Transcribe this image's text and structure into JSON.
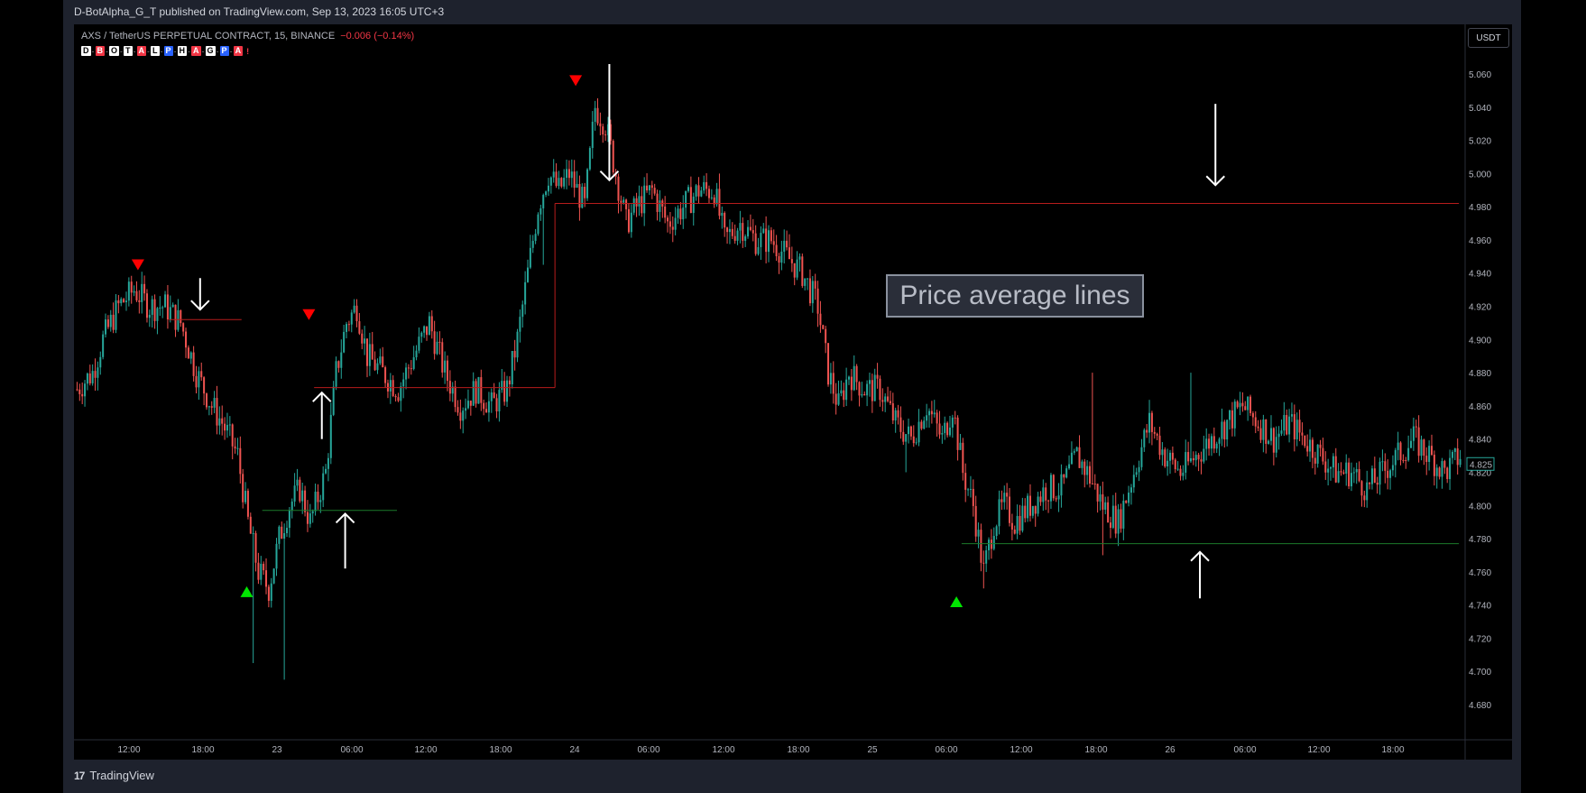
{
  "header": {
    "publisher_line": "D-BotAlpha_G_T published on TradingView.com, Sep 13, 2023 16:05 UTC+3"
  },
  "legend": {
    "symbol": "AXS / TetherUS PERPETUAL CONTRACT, 15, BINANCE",
    "change": "−0.006 (−0.14%)",
    "indicator_badges": [
      {
        "text": "D",
        "color": "#ffffff",
        "fg": "#000000"
      },
      {
        "text": "B",
        "color": "#f23645",
        "fg": "#ffffff"
      },
      {
        "text": "O",
        "color": "#ffffff",
        "fg": "#000000"
      },
      {
        "text": "T",
        "color": "#ffffff",
        "fg": "#000000"
      },
      {
        "text": "A",
        "color": "#f23645",
        "fg": "#ffffff"
      },
      {
        "text": "L",
        "color": "#ffffff",
        "fg": "#000000"
      },
      {
        "text": "P",
        "color": "#2962ff",
        "fg": "#ffffff"
      },
      {
        "text": "H",
        "color": "#ffffff",
        "fg": "#000000"
      },
      {
        "text": "A",
        "color": "#f23645",
        "fg": "#ffffff"
      },
      {
        "text": "G",
        "color": "#ffffff",
        "fg": "#000000"
      },
      {
        "text": "P",
        "color": "#2962ff",
        "fg": "#ffffff"
      },
      {
        "text": "A",
        "color": "#f23645",
        "fg": "#ffffff"
      }
    ],
    "exclaim": "!"
  },
  "currency_button": "USDT",
  "annotation_text": "Price average lines",
  "footer": {
    "brand": "TradingView",
    "mark": "17"
  },
  "colors": {
    "up": "#26a69a",
    "down": "#ef5350",
    "red_line": "#b71c1c",
    "green_line": "#1b7a2a",
    "arrow": "#ffffff",
    "marker_red": "#ff0000",
    "marker_green": "#00e600"
  },
  "chart_data": {
    "type": "candlestick",
    "timeframe": "15",
    "ylim": [
      4.665,
      5.07
    ],
    "y_ticks": [
      "4.680",
      "4.700",
      "4.720",
      "4.740",
      "4.760",
      "4.780",
      "4.800",
      "4.820",
      "4.840",
      "4.860",
      "4.880",
      "4.900",
      "4.920",
      "4.940",
      "4.960",
      "4.980",
      "5.000",
      "5.020",
      "5.040",
      "5.060"
    ],
    "x_ticks": [
      "12:00",
      "18:00",
      "23",
      "06:00",
      "12:00",
      "18:00",
      "24",
      "06:00",
      "12:00",
      "18:00",
      "25",
      "06:00",
      "12:00",
      "18:00",
      "26",
      "06:00",
      "12:00",
      "18:00"
    ],
    "x_range_bars": [
      0,
      370
    ],
    "last_price": "4.825",
    "price_path": [
      [
        0,
        4.87
      ],
      [
        6,
        4.88
      ],
      [
        10,
        4.9
      ],
      [
        16,
        4.92
      ],
      [
        22,
        4.93
      ],
      [
        28,
        4.92
      ],
      [
        34,
        4.92
      ],
      [
        40,
        4.91
      ],
      [
        46,
        4.88
      ],
      [
        52,
        4.86
      ],
      [
        56,
        4.85
      ],
      [
        62,
        4.83
      ],
      [
        66,
        4.79
      ],
      [
        70,
        4.76
      ],
      [
        74,
        4.75
      ],
      [
        78,
        4.78
      ],
      [
        82,
        4.8
      ],
      [
        86,
        4.81
      ],
      [
        90,
        4.79
      ],
      [
        96,
        4.82
      ],
      [
        100,
        4.88
      ],
      [
        104,
        4.91
      ],
      [
        108,
        4.92
      ],
      [
        112,
        4.89
      ],
      [
        118,
        4.88
      ],
      [
        124,
        4.87
      ],
      [
        130,
        4.89
      ],
      [
        136,
        4.91
      ],
      [
        142,
        4.88
      ],
      [
        148,
        4.86
      ],
      [
        154,
        4.87
      ],
      [
        160,
        4.86
      ],
      [
        166,
        4.87
      ],
      [
        170,
        4.9
      ],
      [
        174,
        4.94
      ],
      [
        178,
        4.98
      ],
      [
        182,
        5.0
      ],
      [
        186,
        4.99
      ],
      [
        190,
        5.0
      ],
      [
        196,
        4.98
      ],
      [
        200,
        5.04
      ],
      [
        204,
        5.03
      ],
      [
        208,
        5.0
      ],
      [
        212,
        4.97
      ],
      [
        216,
        4.98
      ],
      [
        222,
        4.99
      ],
      [
        228,
        4.97
      ],
      [
        234,
        4.98
      ],
      [
        240,
        4.99
      ],
      [
        246,
        4.99
      ],
      [
        250,
        4.96
      ],
      [
        256,
        4.97
      ],
      [
        262,
        4.96
      ],
      [
        268,
        4.96
      ],
      [
        274,
        4.95
      ],
      [
        280,
        4.94
      ],
      [
        286,
        4.92
      ],
      [
        290,
        4.88
      ],
      [
        294,
        4.86
      ],
      [
        298,
        4.88
      ],
      [
        304,
        4.87
      ],
      [
        310,
        4.87
      ],
      [
        316,
        4.85
      ],
      [
        322,
        4.84
      ],
      [
        328,
        4.86
      ],
      [
        334,
        4.84
      ],
      [
        338,
        4.86
      ],
      [
        342,
        4.82
      ],
      [
        346,
        4.8
      ],
      [
        350,
        4.76
      ],
      [
        354,
        4.79
      ],
      [
        358,
        4.8
      ],
      [
        362,
        4.79
      ],
      [
        368,
        4.8
      ],
      [
        374,
        4.81
      ],
      [
        380,
        4.81
      ],
      [
        386,
        4.83
      ],
      [
        390,
        4.82
      ],
      [
        396,
        4.8
      ],
      [
        402,
        4.79
      ],
      [
        408,
        4.82
      ],
      [
        414,
        4.85
      ],
      [
        420,
        4.83
      ],
      [
        426,
        4.82
      ],
      [
        432,
        4.83
      ],
      [
        438,
        4.84
      ],
      [
        444,
        4.85
      ],
      [
        450,
        4.86
      ],
      [
        456,
        4.85
      ],
      [
        462,
        4.84
      ],
      [
        468,
        4.85
      ],
      [
        474,
        4.84
      ],
      [
        480,
        4.83
      ],
      [
        486,
        4.82
      ],
      [
        492,
        4.82
      ],
      [
        498,
        4.81
      ],
      [
        504,
        4.82
      ],
      [
        510,
        4.83
      ],
      [
        516,
        4.84
      ],
      [
        522,
        4.83
      ],
      [
        528,
        4.82
      ],
      [
        534,
        4.83
      ]
    ],
    "wick_spikes": [
      [
        68,
        4.705
      ],
      [
        80,
        4.695
      ],
      [
        180,
        4.945
      ],
      [
        248,
        5.0
      ],
      [
        320,
        4.82
      ],
      [
        350,
        4.75
      ],
      [
        392,
        4.88
      ],
      [
        396,
        4.77
      ],
      [
        430,
        4.88
      ]
    ],
    "horizontal_levels": [
      {
        "color": "red",
        "price": 4.912,
        "from": 36,
        "to": 64
      },
      {
        "color": "red",
        "price": 4.871,
        "from": 92,
        "to": 185
      },
      {
        "color": "red",
        "price": 4.982,
        "from": 185,
        "to": 534
      },
      {
        "color": "green",
        "price": 4.797,
        "from": 72,
        "to": 124
      },
      {
        "color": "green",
        "price": 4.777,
        "from": 342,
        "to": 534
      }
    ],
    "step_connector": {
      "from_price": 4.871,
      "to_price": 4.982,
      "at": 185
    },
    "markers": [
      {
        "type": "down",
        "color": "red",
        "bar": 24,
        "price": 4.945
      },
      {
        "type": "down",
        "color": "red",
        "bar": 90,
        "price": 4.915
      },
      {
        "type": "down",
        "color": "red",
        "bar": 193,
        "price": 5.056
      },
      {
        "type": "up",
        "color": "green",
        "bar": 66,
        "price": 4.748
      },
      {
        "type": "up",
        "color": "green",
        "bar": 340,
        "price": 4.742
      }
    ],
    "arrows": [
      {
        "dir": "down",
        "bar": 48,
        "from_price": 4.937,
        "to_price": 4.918
      },
      {
        "dir": "up",
        "bar": 95,
        "from_price": 4.84,
        "to_price": 4.868
      },
      {
        "dir": "up",
        "bar": 104,
        "from_price": 4.762,
        "to_price": 4.795
      },
      {
        "dir": "down",
        "bar": 206,
        "from_price": 5.066,
        "to_price": 4.996
      },
      {
        "dir": "down",
        "bar": 440,
        "from_price": 5.042,
        "to_price": 4.993
      },
      {
        "dir": "up",
        "bar": 434,
        "from_price": 4.744,
        "to_price": 4.772
      }
    ]
  }
}
